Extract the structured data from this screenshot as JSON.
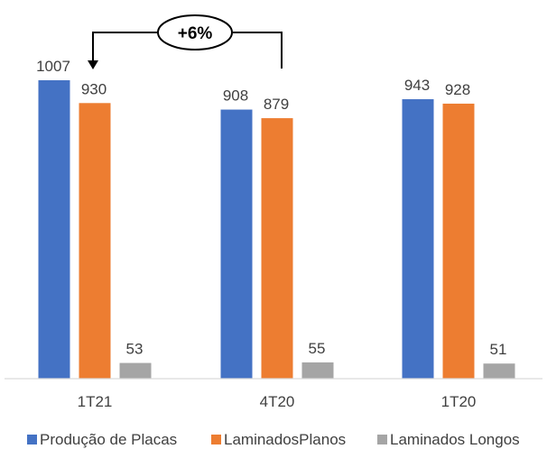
{
  "chart_data": {
    "type": "bar",
    "categories": [
      "1T21",
      "4T20",
      "1T20"
    ],
    "series": [
      {
        "name": "Produção de Placas",
        "values": [
          1007,
          908,
          943
        ],
        "color": "#4472C4"
      },
      {
        "name": "LaminadosPlanos",
        "values": [
          930,
          879,
          928
        ],
        "color": "#ED7D31"
      },
      {
        "name": "Laminados Longos",
        "values": [
          53,
          55,
          51
        ],
        "color": "#A5A5A5"
      }
    ],
    "annotation": {
      "text": "+6%",
      "from_category": "4T20",
      "to_category": "1T21"
    },
    "legend_position": "bottom",
    "grid": false,
    "ylim": [
      0,
      1007
    ]
  }
}
